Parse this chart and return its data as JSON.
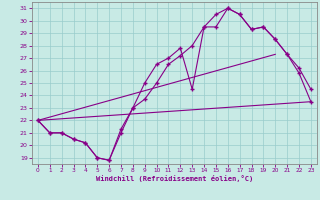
{
  "xlabel": "Windchill (Refroidissement éolien,°C)",
  "bg_color": "#c8eae5",
  "line_color": "#880088",
  "grid_color": "#99cccc",
  "ylim": [
    18.5,
    31.5
  ],
  "xlim": [
    -0.5,
    23.5
  ],
  "yticks": [
    19,
    20,
    21,
    22,
    23,
    24,
    25,
    26,
    27,
    28,
    29,
    30,
    31
  ],
  "xticks": [
    0,
    1,
    2,
    3,
    4,
    5,
    6,
    7,
    8,
    9,
    10,
    11,
    12,
    13,
    14,
    15,
    16,
    17,
    18,
    19,
    20,
    21,
    22,
    23
  ],
  "s1x": [
    0,
    1,
    2,
    3,
    4,
    5,
    6,
    7,
    8,
    9,
    10,
    11,
    12,
    13,
    14,
    15,
    16,
    17,
    18,
    19,
    20,
    21,
    22,
    23
  ],
  "s1y": [
    22,
    21,
    21,
    20.5,
    20.2,
    19.0,
    18.8,
    21.0,
    23.0,
    25.0,
    26.5,
    27.0,
    27.8,
    24.5,
    29.5,
    29.5,
    31.0,
    30.5,
    29.3,
    29.5,
    28.5,
    27.3,
    26.2,
    24.5
  ],
  "s2x": [
    0,
    1,
    2,
    3,
    4,
    5,
    6,
    7,
    8,
    9,
    10,
    11,
    12,
    13,
    14,
    15,
    16,
    17,
    18,
    19,
    20,
    21,
    22,
    23
  ],
  "s2y": [
    22,
    21,
    21,
    20.5,
    20.2,
    19.0,
    18.8,
    21.3,
    23.0,
    23.7,
    25.0,
    26.5,
    27.2,
    28.0,
    29.5,
    30.5,
    31.0,
    30.5,
    29.3,
    29.5,
    28.5,
    27.3,
    25.8,
    23.5
  ],
  "s3x": [
    0,
    23
  ],
  "s3y": [
    22.0,
    23.5
  ],
  "s4x": [
    0,
    20
  ],
  "s4y": [
    22.0,
    27.3
  ]
}
